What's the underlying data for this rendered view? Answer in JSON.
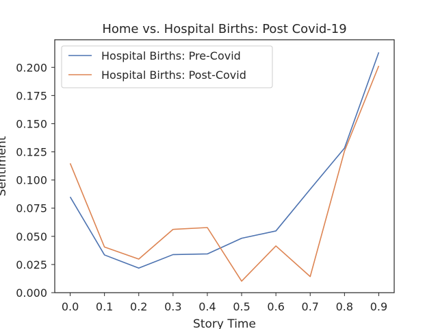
{
  "chart_data": {
    "type": "line",
    "title": "Home vs. Hospital Births: Post Covid-19",
    "xlabel": "Story Time",
    "ylabel": "Sentiment",
    "x": [
      0.0,
      0.1,
      0.2,
      0.3,
      0.4,
      0.5,
      0.6,
      0.7,
      0.8,
      0.9
    ],
    "x_tick_labels": [
      "0.0",
      "0.1",
      "0.2",
      "0.3",
      "0.4",
      "0.5",
      "0.6",
      "0.7",
      "0.8",
      "0.9"
    ],
    "y_ticks": [
      0.0,
      0.025,
      0.05,
      0.075,
      0.1,
      0.125,
      0.15,
      0.175,
      0.2
    ],
    "y_tick_labels": [
      "0.000",
      "0.025",
      "0.050",
      "0.075",
      "0.100",
      "0.125",
      "0.150",
      "0.175",
      "0.200"
    ],
    "xlim": [
      -0.045,
      0.945
    ],
    "ylim": [
      0.0,
      0.2245
    ],
    "grid": false,
    "legend_position": "top-left",
    "series": [
      {
        "name": "Hospital Births: Pre-Covid",
        "color": "#4c72b0",
        "values": [
          0.085,
          0.0335,
          0.0218,
          0.0338,
          0.0344,
          0.0483,
          0.0548,
          0.0918,
          0.1283,
          0.2133
        ]
      },
      {
        "name": "Hospital Births: Post-Covid",
        "color": "#dd8452",
        "values": [
          0.1148,
          0.0405,
          0.0298,
          0.0562,
          0.0578,
          0.0102,
          0.0415,
          0.0143,
          0.1257,
          0.2013
        ]
      }
    ]
  }
}
